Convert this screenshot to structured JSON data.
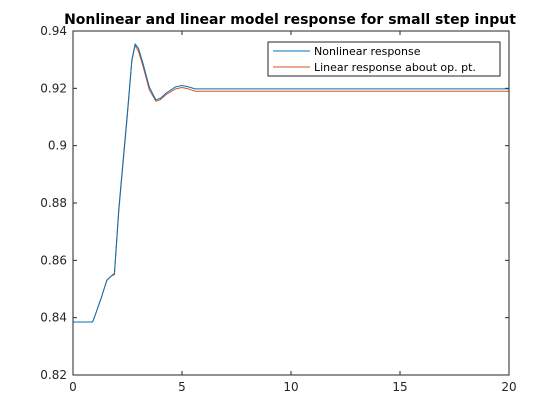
{
  "chart_data": {
    "type": "line",
    "title": "Nonlinear and linear model response for small step input",
    "xlabel": "",
    "ylabel": "",
    "xlim": [
      0,
      20
    ],
    "ylim": [
      0.82,
      0.94
    ],
    "xticks": [
      0,
      5,
      10,
      15,
      20
    ],
    "yticks": [
      0.82,
      0.84,
      0.86,
      0.88,
      0.9,
      0.92,
      0.94
    ],
    "xtick_labels": [
      "0",
      "5",
      "10",
      "15",
      "20"
    ],
    "ytick_labels": [
      "0.82",
      "0.84",
      "0.86",
      "0.88",
      "0.9",
      "0.92",
      "0.94"
    ],
    "grid": false,
    "legend_position": "top-right",
    "series": [
      {
        "name": "Nonlinear response",
        "color": "#0072BD",
        "x": [
          0,
          0.9,
          1.0,
          1.3,
          1.55,
          1.75,
          1.9,
          2.1,
          2.5,
          2.7,
          2.85,
          3.0,
          3.2,
          3.5,
          3.8,
          4.0,
          4.3,
          4.7,
          5.0,
          5.3,
          5.6,
          6.0,
          7,
          10,
          15,
          20
        ],
        "y": [
          0.8385,
          0.8385,
          0.8405,
          0.847,
          0.853,
          0.8545,
          0.8555,
          0.878,
          0.912,
          0.93,
          0.9355,
          0.934,
          0.929,
          0.9205,
          0.916,
          0.9165,
          0.9185,
          0.9205,
          0.921,
          0.9205,
          0.9198,
          0.9198,
          0.9198,
          0.9198,
          0.9198,
          0.9198
        ]
      },
      {
        "name": "Linear response about op. pt.",
        "color": "#D95319",
        "x": [
          0,
          0.9,
          1.0,
          1.3,
          1.55,
          1.75,
          1.9,
          2.1,
          2.5,
          2.7,
          2.85,
          3.0,
          3.2,
          3.5,
          3.8,
          4.0,
          4.3,
          4.7,
          5.0,
          5.3,
          5.6,
          6.0,
          7,
          10,
          15,
          20
        ],
        "y": [
          0.8385,
          0.8385,
          0.8405,
          0.847,
          0.853,
          0.8545,
          0.855,
          0.877,
          0.911,
          0.9295,
          0.935,
          0.933,
          0.928,
          0.9195,
          0.9155,
          0.916,
          0.918,
          0.9198,
          0.9203,
          0.9198,
          0.919,
          0.919,
          0.919,
          0.919,
          0.919,
          0.919
        ]
      }
    ]
  }
}
